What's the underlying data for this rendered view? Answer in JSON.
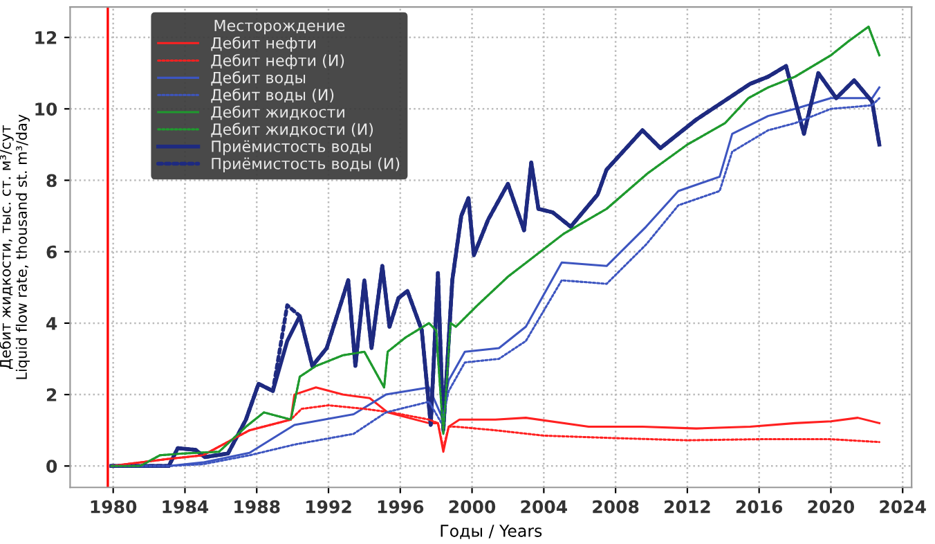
{
  "chart_data": {
    "type": "line",
    "xlabel": "Годы / Years",
    "ylabel": "Дебит жидкости, тыс. ст. м³/сут\nLiquid flow rate, thousand st. m³/day",
    "legend_title": "Месторождение",
    "legend": "top left",
    "grid": true,
    "xlim": [
      1977.6,
      2024.5
    ],
    "ylim": [
      -0.6,
      12.85
    ],
    "xticks": [
      1980,
      1984,
      1988,
      1992,
      1996,
      2000,
      2004,
      2008,
      2012,
      2016,
      2020,
      2024
    ],
    "yticks": [
      0,
      2,
      4,
      6,
      8,
      10,
      12
    ],
    "ref_lines": [
      {
        "axis": "x",
        "value": 1979.7,
        "color": "#ff0000",
        "line_style": "solid"
      }
    ],
    "series": [
      {
        "name": "Дебит нефти",
        "color": "#ff2020",
        "line_style": "solid",
        "x": [
          1979.9,
          1983.1,
          1985,
          1987.6,
          1989.9,
          1990.1,
          1991.3,
          1992.8,
          1994.3,
          1995.3,
          1997.6,
          1998.1,
          1998.4,
          1998.7,
          1999.3,
          2001.3,
          2003,
          2006.5,
          2009.5,
          2012.5,
          2015.5,
          2018,
          2020,
          2021.5,
          2022.7
        ],
        "values": [
          0,
          0.2,
          0.3,
          1.0,
          1.3,
          2.0,
          2.2,
          2.0,
          1.9,
          1.5,
          1.2,
          1.2,
          0.4,
          1.1,
          1.3,
          1.3,
          1.35,
          1.1,
          1.1,
          1.05,
          1.1,
          1.2,
          1.25,
          1.35,
          1.2
        ]
      },
      {
        "name": "Дебит нефти (И)",
        "color": "#ff2020",
        "line_style": "dotted",
        "x": [
          1979.9,
          1983.1,
          1985,
          1987.6,
          1989.9,
          1990.5,
          1992,
          1994,
          1995.5,
          1997.6,
          1998.1,
          1998.4,
          1998.7,
          1999.1,
          2001.3,
          2004,
          2008,
          2012,
          2016,
          2020,
          2022.7
        ],
        "values": [
          0,
          0.2,
          0.3,
          1.0,
          1.3,
          1.6,
          1.7,
          1.6,
          1.5,
          1.3,
          1.2,
          0.5,
          1.1,
          1.1,
          1.0,
          0.85,
          0.78,
          0.72,
          0.75,
          0.75,
          0.67
        ]
      },
      {
        "name": "Дебит воды",
        "color": "#3d55c0",
        "line_style": "solid",
        "x": [
          1979.9,
          1983.1,
          1985,
          1987.6,
          1990.1,
          1993.4,
          1995.2,
          1997.6,
          1998.3,
          1998.7,
          1999.6,
          2001.5,
          2003,
          2005,
          2007.5,
          2009.7,
          2011.5,
          2013.8,
          2014.5,
          2016.5,
          2018,
          2020,
          2022.3,
          2022.7
        ],
        "values": [
          0,
          0,
          0.1,
          0.37,
          1.15,
          1.45,
          2.0,
          2.2,
          1.4,
          2.4,
          3.2,
          3.3,
          3.9,
          5.7,
          5.6,
          6.7,
          7.7,
          8.1,
          9.3,
          9.8,
          10.0,
          10.3,
          10.3,
          10.6
        ]
      },
      {
        "name": "Дебит воды (И)",
        "color": "#3d55c0",
        "line_style": "dotted",
        "x": [
          1979.9,
          1983.1,
          1985,
          1987.6,
          1990.1,
          1993.4,
          1995.2,
          1997.6,
          1998.3,
          1998.7,
          1999.6,
          2001.5,
          2003,
          2005,
          2007.5,
          2009.7,
          2011.5,
          2013.8,
          2014.5,
          2016.5,
          2018,
          2020,
          2022.3,
          2022.7
        ],
        "values": [
          0,
          0,
          0.05,
          0.3,
          0.6,
          0.9,
          1.5,
          1.8,
          1.2,
          2.1,
          2.9,
          3.0,
          3.5,
          5.2,
          5.1,
          6.2,
          7.3,
          7.7,
          8.8,
          9.4,
          9.6,
          10.0,
          10.1,
          10.3
        ]
      },
      {
        "name": "Дебит жидкости",
        "color": "#1f9a2e",
        "line_style": "solid",
        "x": [
          1979.9,
          1981.5,
          1982.6,
          1983.9,
          1985.9,
          1987.4,
          1988.4,
          1989.9,
          1990.4,
          1991.3,
          1992.8,
          1994.0,
          1995.1,
          1995.3,
          1996.3,
          1997.6,
          1998.0,
          1998.4,
          1998.8,
          1999.1,
          2000.3,
          2002,
          2005.1,
          2007.5,
          2009.8,
          2012,
          2014.1,
          2015.4,
          2016.5,
          2018,
          2019,
          2020,
          2021,
          2022.1,
          2022.7
        ],
        "values": [
          0,
          0,
          0.3,
          0.35,
          0.4,
          1.1,
          1.5,
          1.3,
          2.5,
          2.8,
          3.1,
          3.2,
          2.2,
          3.2,
          3.6,
          4.0,
          3.8,
          0.9,
          4.0,
          3.9,
          4.5,
          5.3,
          6.5,
          7.2,
          8.2,
          9.0,
          9.6,
          10.3,
          10.6,
          10.9,
          11.2,
          11.5,
          11.9,
          12.3,
          11.5
        ]
      },
      {
        "name": "Дебит жидкости (И)",
        "color": "#1f9a2e",
        "line_style": "dotted",
        "x": [
          1979.9,
          1981.5,
          1982.6,
          1983.9,
          1985.9,
          1987.4,
          1988.4,
          1989.9,
          1990.4,
          1991.3,
          1992.8,
          1994.0,
          1995.1,
          1995.3,
          1996.3,
          1997.6,
          1998.0,
          1998.4,
          1998.8,
          1999.1,
          2000.3,
          2002,
          2005.1,
          2007.5,
          2009.8,
          2012,
          2014.1,
          2015.4,
          2016.5,
          2018,
          2019,
          2020,
          2021,
          2022.1,
          2022.7
        ],
        "values": [
          0,
          0,
          0.3,
          0.35,
          0.4,
          1.1,
          1.5,
          1.3,
          2.5,
          2.8,
          3.1,
          3.2,
          2.2,
          3.2,
          3.6,
          4.0,
          3.8,
          0.9,
          4.0,
          3.9,
          4.5,
          5.3,
          6.5,
          7.2,
          8.2,
          9.0,
          9.6,
          10.3,
          10.6,
          10.9,
          11.2,
          11.5,
          11.9,
          12.3,
          11.5
        ]
      },
      {
        "name": "Приёмистость воды",
        "color": "#1e2a80",
        "line_style": "solid",
        "x": [
          1979.9,
          1983.1,
          1983.6,
          1984.6,
          1985.1,
          1986.4,
          1987.4,
          1988.1,
          1988.9,
          1989.7,
          1990.4,
          1991.1,
          1991.9,
          1993.1,
          1993.5,
          1994.0,
          1994.4,
          1995.0,
          1995.4,
          1995.9,
          1996.4,
          1997.2,
          1997.7,
          1998.1,
          1998.4,
          1998.9,
          1999.4,
          1999.8,
          2000.1,
          2000.9,
          2002,
          2002.9,
          2003.3,
          2003.7,
          2004.5,
          2005.5,
          2007,
          2007.5,
          2009.5,
          2010.5,
          2012.5,
          2014,
          2015.5,
          2016.5,
          2017.5,
          2018.5,
          2019.3,
          2020.3,
          2021.3,
          2022.3,
          2022.7
        ],
        "values": [
          0,
          0,
          0.5,
          0.45,
          0.25,
          0.35,
          1.3,
          2.3,
          2.1,
          3.5,
          4.2,
          2.8,
          3.3,
          5.2,
          2.8,
          5.2,
          3.3,
          5.6,
          3.9,
          4.7,
          4.9,
          3.8,
          1.15,
          5.4,
          1.0,
          5.2,
          7.0,
          7.5,
          5.9,
          6.9,
          7.9,
          6.6,
          8.5,
          7.2,
          7.1,
          6.7,
          7.6,
          8.3,
          9.4,
          8.9,
          9.7,
          10.2,
          10.7,
          10.9,
          11.2,
          9.3,
          11.0,
          10.3,
          10.8,
          10.2,
          9.0
        ]
      },
      {
        "name": "Приёмистость воды (И)",
        "color": "#1e2a80",
        "line_style": "dotted",
        "x": [
          1979.9,
          1983.1,
          1983.6,
          1984.6,
          1985.1,
          1986.4,
          1987.4,
          1988.1,
          1988.9,
          1989.7,
          1990.4,
          1991.1,
          1991.9,
          1993.1,
          1993.5,
          1994.0,
          1994.4,
          1995.0,
          1995.4,
          1995.9,
          1996.4,
          1997.2,
          1997.7,
          1998.1,
          1998.4,
          1998.9,
          1999.4,
          1999.8,
          2000.1,
          2000.9,
          2002,
          2002.9,
          2003.3,
          2003.7,
          2004.5,
          2005.5,
          2007,
          2007.5,
          2009.5,
          2010.5,
          2012.5,
          2014,
          2015.5,
          2016.5,
          2017.5,
          2018.5,
          2019.3,
          2020.3,
          2021.3,
          2022.3,
          2022.7
        ],
        "values": [
          0,
          0,
          0.5,
          0.45,
          0.25,
          0.35,
          1.3,
          2.3,
          2.1,
          4.5,
          4.2,
          2.8,
          3.3,
          5.2,
          2.8,
          5.2,
          3.3,
          5.6,
          3.9,
          4.7,
          4.9,
          3.8,
          1.15,
          5.4,
          1.0,
          5.2,
          7.0,
          7.5,
          5.9,
          6.9,
          7.9,
          6.6,
          8.5,
          7.2,
          7.1,
          6.7,
          7.6,
          8.3,
          9.4,
          8.9,
          9.7,
          10.2,
          10.7,
          10.9,
          11.2,
          9.3,
          11.0,
          10.3,
          10.8,
          10.2,
          9.0
        ]
      }
    ]
  }
}
